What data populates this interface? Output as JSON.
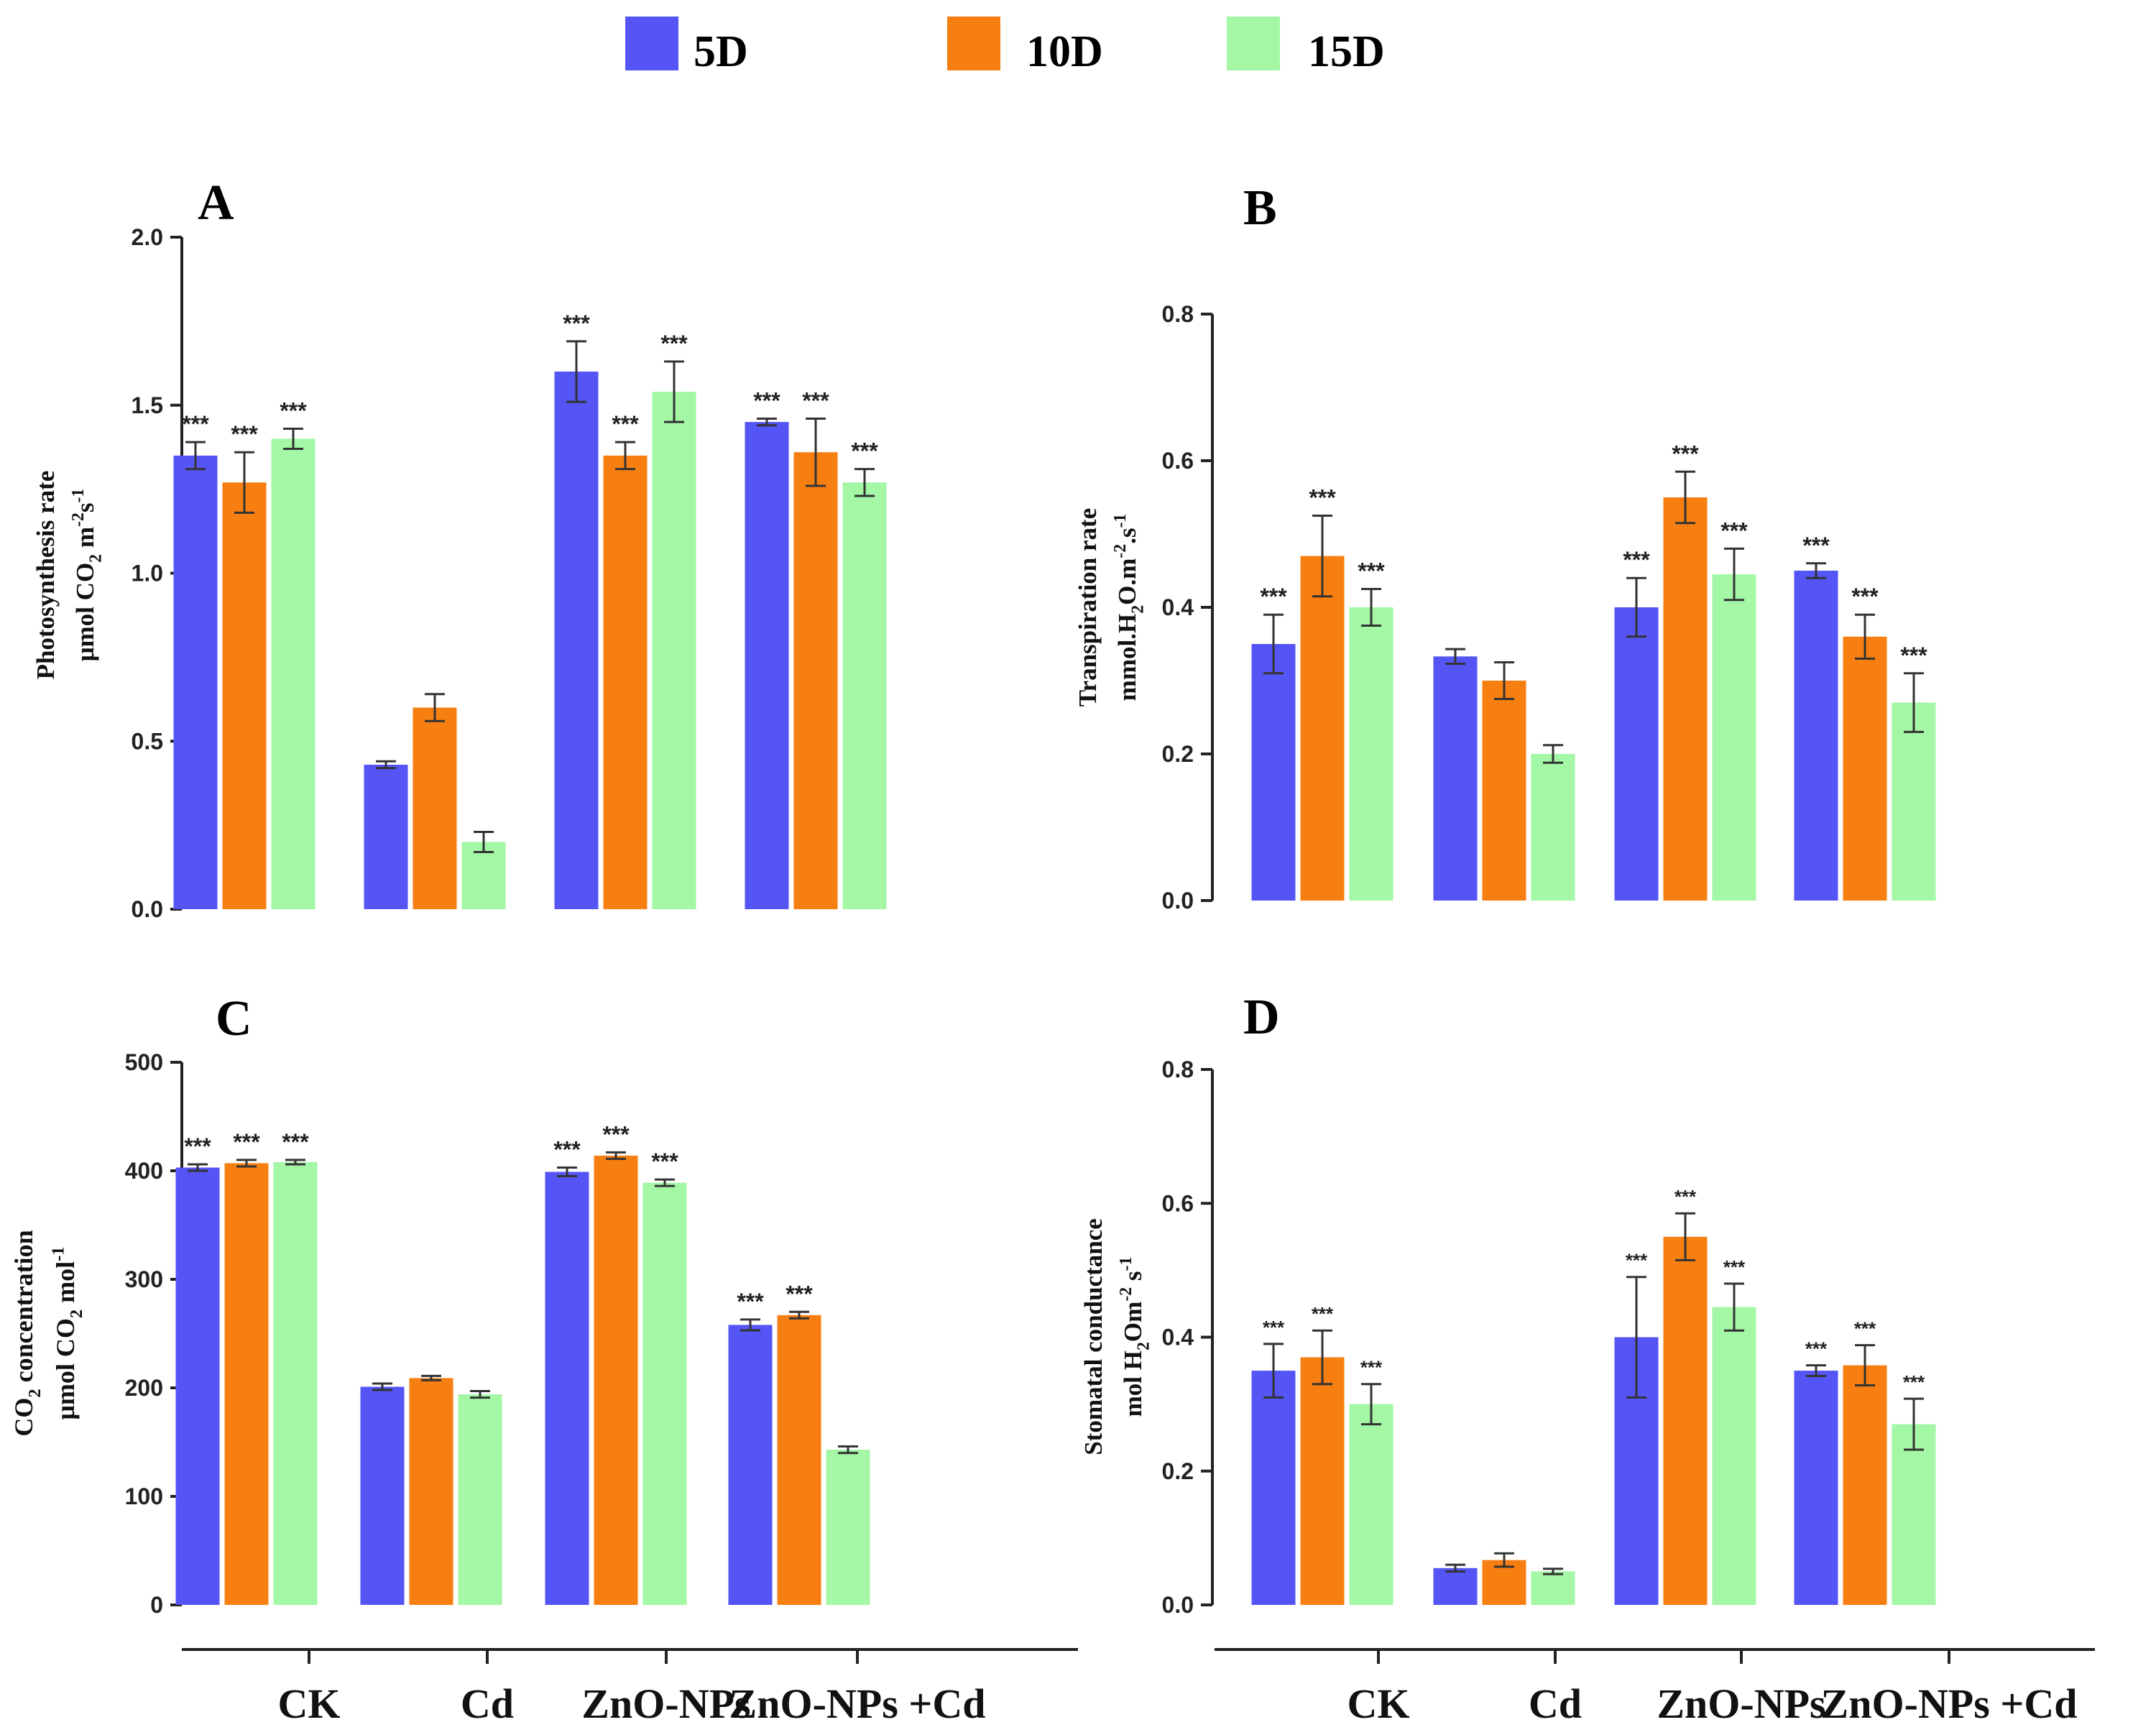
{
  "legend": {
    "items": [
      {
        "label": "5D",
        "color": "#5555f5"
      },
      {
        "label": "10D",
        "color": "#f77f12"
      },
      {
        "label": "15D",
        "color": "#a3f7a5"
      }
    ]
  },
  "x_labels": [
    "CK",
    "Cd",
    "ZnO-NPs",
    "ZnO-NPs +Cd"
  ],
  "chart_data": [
    {
      "panel": "A",
      "type": "bar",
      "categories": [
        "CK",
        "Cd",
        "ZnO-NPs",
        "ZnO-NPs +Cd"
      ],
      "ylabel": [
        "Photosynthesis rate",
        "μmol CO2 m-2s-1"
      ],
      "ylim": [
        0,
        2.0
      ],
      "yticks": [
        "0.0",
        "0.5",
        "1.0",
        "1.5",
        "2.0"
      ],
      "series": [
        {
          "name": "5D",
          "values": [
            1.35,
            0.43,
            1.6,
            1.45
          ],
          "errors": [
            0.04,
            0.01,
            0.09,
            0.01
          ]
        },
        {
          "name": "10D",
          "values": [
            1.27,
            0.6,
            1.35,
            1.36
          ],
          "errors": [
            0.09,
            0.04,
            0.04,
            0.1
          ]
        },
        {
          "name": "15D",
          "values": [
            1.4,
            0.2,
            1.54,
            1.27
          ],
          "errors": [
            0.03,
            0.03,
            0.09,
            0.04
          ]
        }
      ],
      "labels": [
        [
          "***",
          "",
          "***",
          "***"
        ],
        [
          "***",
          "",
          "***",
          "***"
        ],
        [
          "***",
          "",
          "***",
          "***"
        ]
      ]
    },
    {
      "panel": "B",
      "type": "bar",
      "categories": [
        "CK",
        "Cd",
        "ZnO-NPs",
        "ZnO-NPs +Cd"
      ],
      "ylabel": [
        "Transpiration rate",
        "mmol.H2O.m-2.s-1"
      ],
      "ylim": [
        0,
        0.8
      ],
      "yticks": [
        "0.0",
        "0.2",
        "0.4",
        "0.6",
        "0.8"
      ],
      "series": [
        {
          "name": "5D",
          "values": [
            0.35,
            0.333,
            0.4,
            0.45
          ],
          "errors": [
            0.04,
            0.01,
            0.04,
            0.01
          ]
        },
        {
          "name": "10D",
          "values": [
            0.47,
            0.3,
            0.55,
            0.36
          ],
          "errors": [
            0.055,
            0.025,
            0.035,
            0.03
          ]
        },
        {
          "name": "15D",
          "values": [
            0.4,
            0.2,
            0.445,
            0.27
          ],
          "errors": [
            0.025,
            0.012,
            0.035,
            0.04
          ]
        }
      ],
      "labels": [
        [
          "***",
          "",
          "***",
          "***"
        ],
        [
          "***",
          "",
          "***",
          "***"
        ],
        [
          "***",
          "",
          "***",
          "***"
        ]
      ]
    },
    {
      "panel": "C",
      "type": "bar",
      "categories": [
        "CK",
        "Cd",
        "ZnO-NPs",
        "ZnO-NPs +Cd"
      ],
      "ylabel": [
        "CO2 concentration",
        "μmol CO2 mol-1"
      ],
      "ylim": [
        0,
        500
      ],
      "yticks": [
        "0",
        "100",
        "200",
        "300",
        "400",
        "500"
      ],
      "series": [
        {
          "name": "5D",
          "values": [
            403,
            201,
            399,
            258
          ],
          "errors": [
            3,
            3,
            4,
            5
          ]
        },
        {
          "name": "10D",
          "values": [
            407,
            209,
            414,
            267
          ],
          "errors": [
            3,
            2,
            3,
            3
          ]
        },
        {
          "name": "15D",
          "values": [
            408,
            194,
            389,
            143
          ],
          "errors": [
            2,
            3,
            3,
            3
          ]
        }
      ],
      "labels": [
        [
          "***",
          "",
          "***",
          "***"
        ],
        [
          "***",
          "",
          "***",
          "***"
        ],
        [
          "***",
          "",
          "***",
          ""
        ]
      ]
    },
    {
      "panel": "D",
      "type": "bar",
      "categories": [
        "CK",
        "Cd",
        "ZnO-NPs",
        "ZnO-NPs +Cd"
      ],
      "ylabel": [
        "Stomatal conductance",
        "mol H2Om-2 s-1"
      ],
      "ylim": [
        0,
        0.8
      ],
      "yticks": [
        "0.0",
        "0.2",
        "0.4",
        "0.6",
        "0.8"
      ],
      "series": [
        {
          "name": "5D",
          "values": [
            0.35,
            0.055,
            0.4,
            0.35
          ],
          "errors": [
            0.04,
            0.005,
            0.09,
            0.008
          ]
        },
        {
          "name": "10D",
          "values": [
            0.37,
            0.067,
            0.55,
            0.358
          ],
          "errors": [
            0.04,
            0.01,
            0.035,
            0.03
          ]
        },
        {
          "name": "15D",
          "values": [
            0.3,
            0.05,
            0.445,
            0.27
          ],
          "errors": [
            0.03,
            0.004,
            0.035,
            0.038
          ]
        }
      ],
      "labels": [
        [
          "***",
          "",
          "***",
          "***"
        ],
        [
          "***",
          "",
          "***",
          "***"
        ],
        [
          "***",
          "",
          "***",
          "***"
        ]
      ]
    }
  ]
}
